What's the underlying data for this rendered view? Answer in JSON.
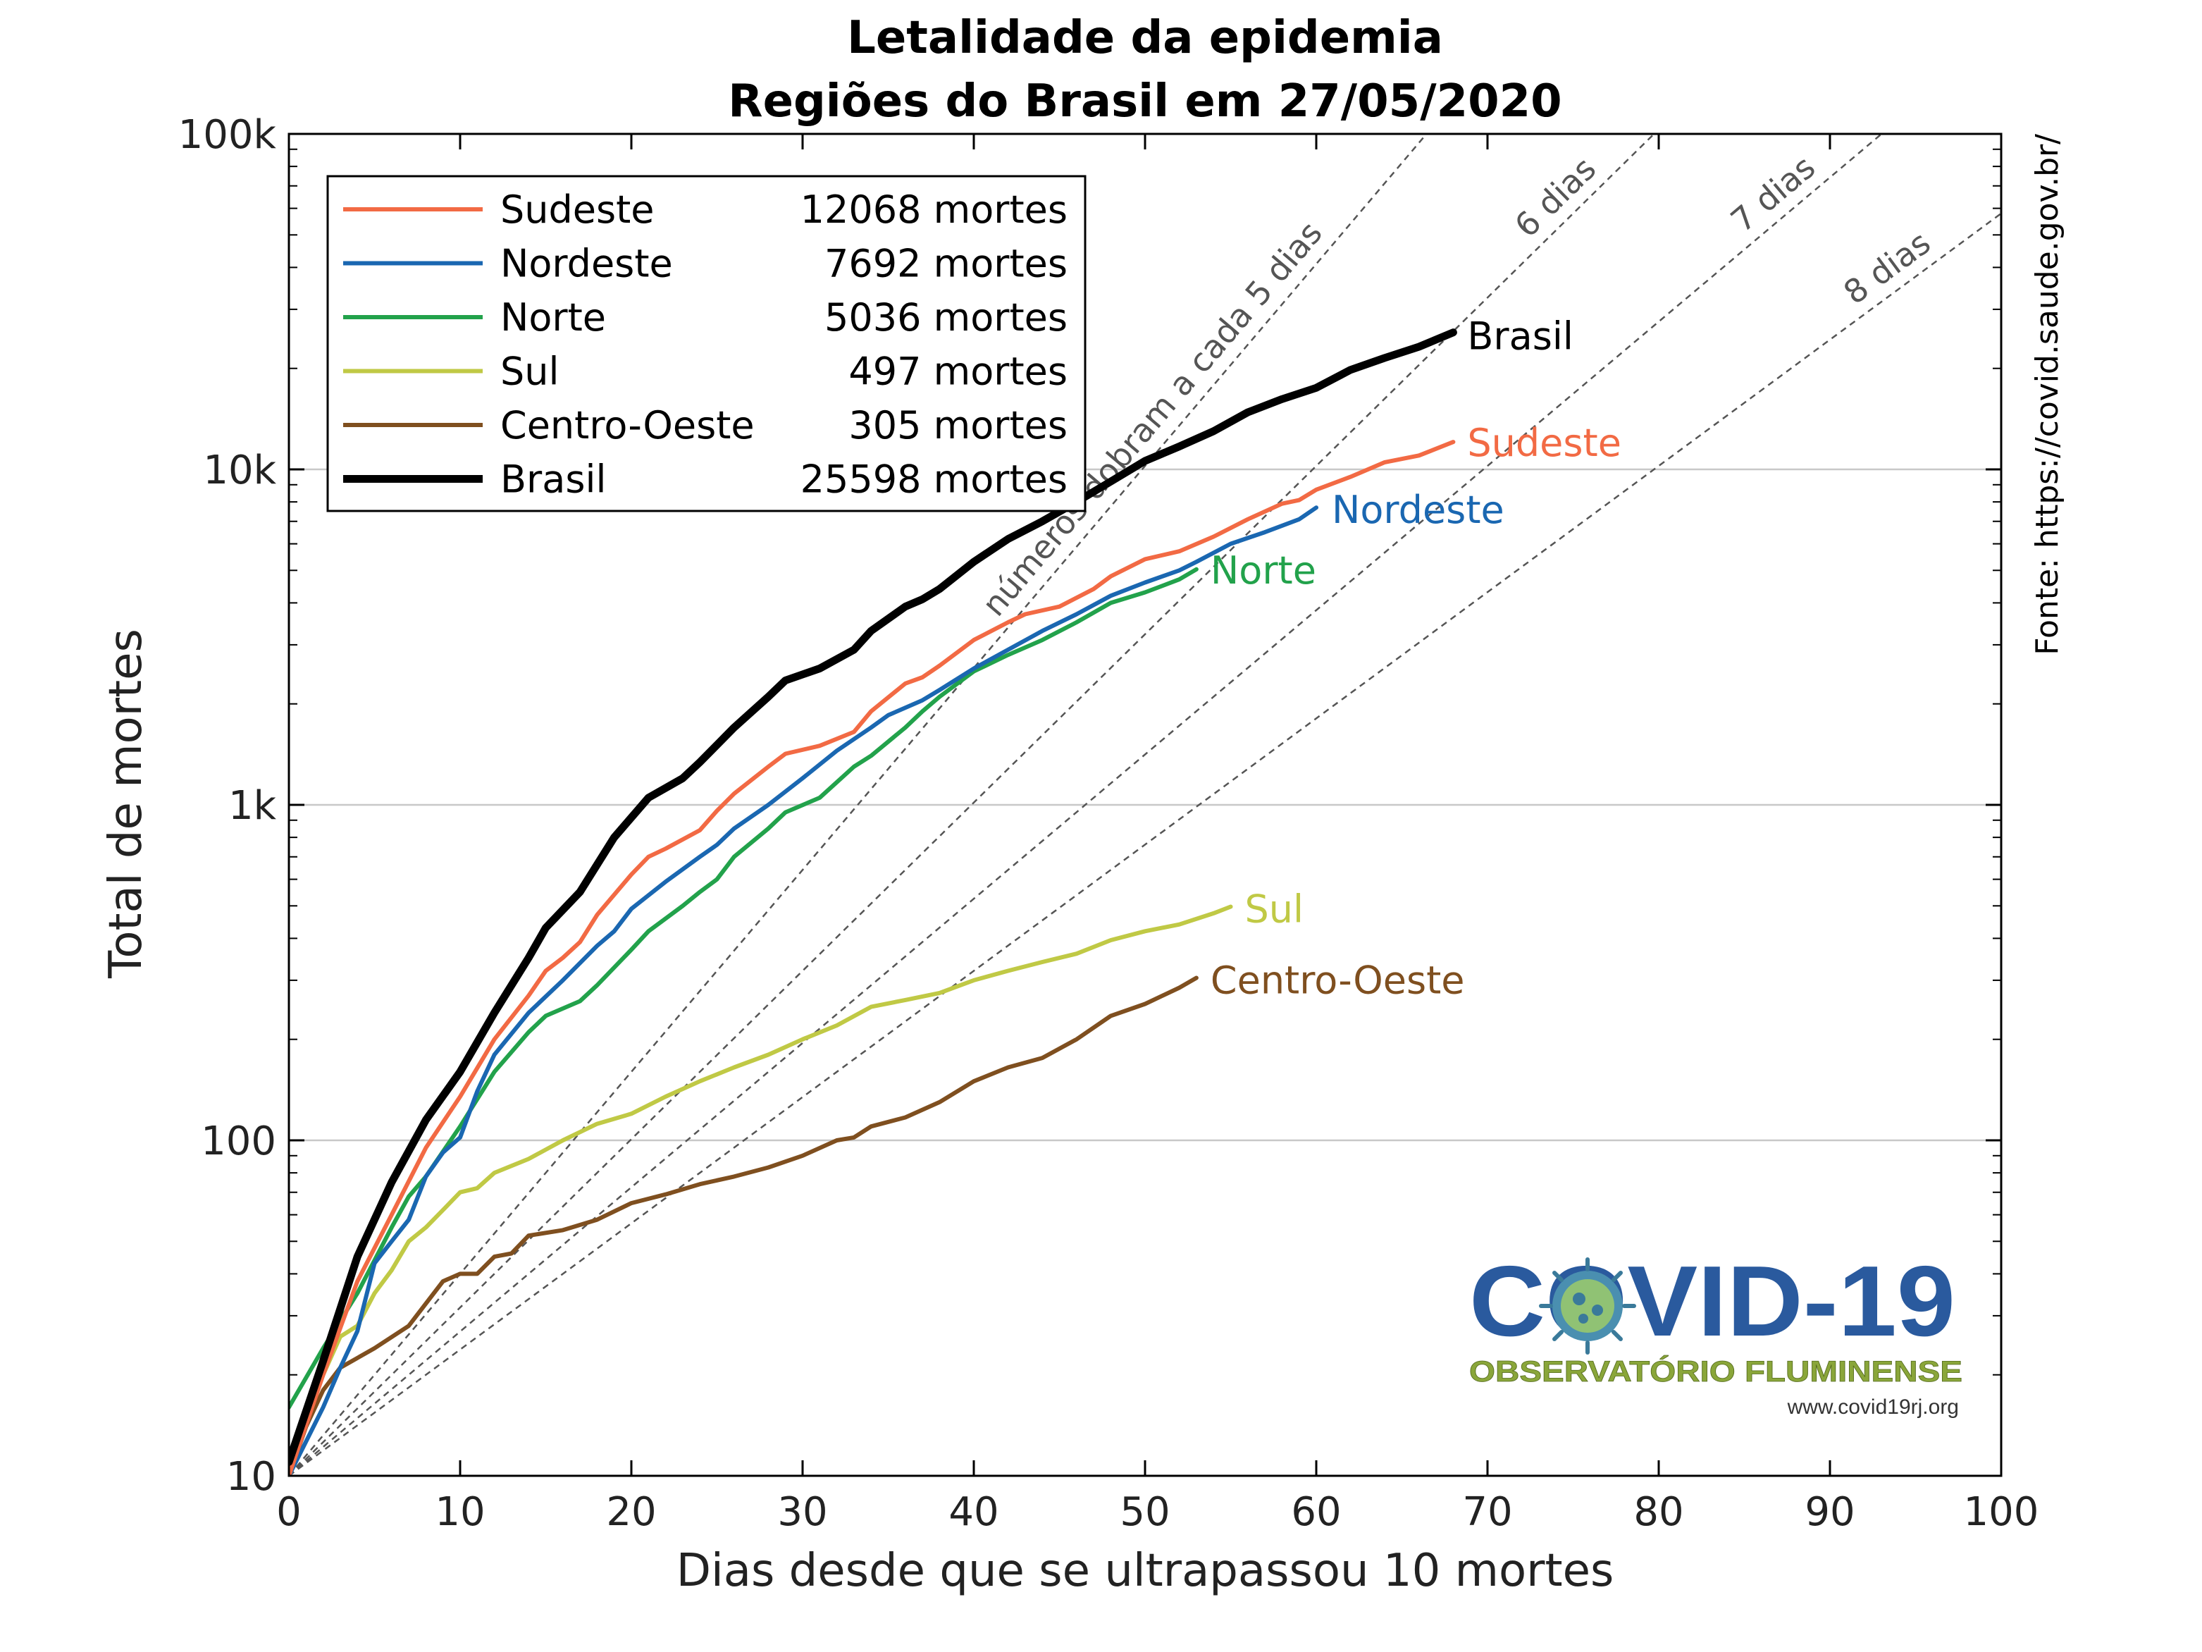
{
  "chart_data": {
    "type": "line",
    "title_line1": "Letalidade da epidemia",
    "title_line2": "Regiões do Brasil em 27/05/2020",
    "xlabel": "Dias desde que se ultrapassou 10 mortes",
    "ylabel": "Total de mortes",
    "xlim": [
      0,
      100
    ],
    "ylim": [
      10,
      100000
    ],
    "yscale": "log",
    "grid": "horizontal at decades",
    "legend_position": "top-left",
    "x_ticks": [
      {
        "v": 0,
        "label": "0"
      },
      {
        "v": 10,
        "label": "10"
      },
      {
        "v": 20,
        "label": "20"
      },
      {
        "v": 30,
        "label": "30"
      },
      {
        "v": 40,
        "label": "40"
      },
      {
        "v": 50,
        "label": "50"
      },
      {
        "v": 60,
        "label": "60"
      },
      {
        "v": 70,
        "label": "70"
      },
      {
        "v": 80,
        "label": "80"
      },
      {
        "v": 90,
        "label": "90"
      },
      {
        "v": 100,
        "label": "100"
      }
    ],
    "y_ticks": [
      {
        "v": 10,
        "label": "10"
      },
      {
        "v": 100,
        "label": "100"
      },
      {
        "v": 1000,
        "label": "1k"
      },
      {
        "v": 10000,
        "label": "10k"
      },
      {
        "v": 100000,
        "label": "100k"
      }
    ],
    "source": "Fonte: https://covid.saude.gov.br/",
    "reference_lines": [
      {
        "doubling_days": 5,
        "label": "números dobram a cada 5 dias"
      },
      {
        "doubling_days": 6,
        "label": "6 dias"
      },
      {
        "doubling_days": 7,
        "label": "7 dias"
      },
      {
        "doubling_days": 8,
        "label": "8 dias"
      }
    ],
    "series": [
      {
        "name": "Sudeste",
        "legend_value": "12068 mortes",
        "color": "#f26a44",
        "width": 3,
        "points": [
          [
            0,
            10
          ],
          [
            2,
            20
          ],
          [
            4,
            38
          ],
          [
            6,
            60
          ],
          [
            8,
            95
          ],
          [
            10,
            135
          ],
          [
            12,
            200
          ],
          [
            14,
            270
          ],
          [
            15,
            320
          ],
          [
            16,
            350
          ],
          [
            17,
            390
          ],
          [
            18,
            470
          ],
          [
            20,
            620
          ],
          [
            21,
            700
          ],
          [
            22,
            740
          ],
          [
            24,
            840
          ],
          [
            25,
            960
          ],
          [
            26,
            1080
          ],
          [
            28,
            1300
          ],
          [
            29,
            1420
          ],
          [
            31,
            1500
          ],
          [
            33,
            1650
          ],
          [
            34,
            1900
          ],
          [
            36,
            2300
          ],
          [
            37,
            2400
          ],
          [
            38,
            2600
          ],
          [
            40,
            3100
          ],
          [
            42,
            3500
          ],
          [
            43,
            3700
          ],
          [
            45,
            3900
          ],
          [
            47,
            4400
          ],
          [
            48,
            4800
          ],
          [
            50,
            5400
          ],
          [
            52,
            5700
          ],
          [
            54,
            6300
          ],
          [
            56,
            7100
          ],
          [
            58,
            7900
          ],
          [
            59,
            8100
          ],
          [
            60,
            8700
          ],
          [
            62,
            9500
          ],
          [
            64,
            10500
          ],
          [
            66,
            11000
          ],
          [
            68,
            12068
          ]
        ]
      },
      {
        "name": "Nordeste",
        "legend_value": "7692 mortes",
        "color": "#1a67b1",
        "width": 3,
        "points": [
          [
            0,
            10
          ],
          [
            2,
            16
          ],
          [
            3,
            21
          ],
          [
            4,
            27
          ],
          [
            5,
            43
          ],
          [
            6,
            50
          ],
          [
            7,
            58
          ],
          [
            8,
            78
          ],
          [
            9,
            92
          ],
          [
            10,
            102
          ],
          [
            11,
            140
          ],
          [
            12,
            180
          ],
          [
            14,
            240
          ],
          [
            16,
            300
          ],
          [
            18,
            380
          ],
          [
            19,
            420
          ],
          [
            20,
            490
          ],
          [
            22,
            590
          ],
          [
            24,
            700
          ],
          [
            25,
            760
          ],
          [
            26,
            850
          ],
          [
            28,
            1000
          ],
          [
            30,
            1200
          ],
          [
            32,
            1450
          ],
          [
            34,
            1700
          ],
          [
            35,
            1850
          ],
          [
            37,
            2050
          ],
          [
            38,
            2200
          ],
          [
            40,
            2550
          ],
          [
            42,
            2900
          ],
          [
            44,
            3300
          ],
          [
            46,
            3700
          ],
          [
            48,
            4200
          ],
          [
            50,
            4600
          ],
          [
            52,
            5000
          ],
          [
            53,
            5300
          ],
          [
            55,
            6000
          ],
          [
            57,
            6500
          ],
          [
            59,
            7100
          ],
          [
            60,
            7692
          ]
        ]
      },
      {
        "name": "Norte",
        "legend_value": "5036 mortes",
        "color": "#22a24b",
        "width": 3,
        "points": [
          [
            0,
            16
          ],
          [
            2,
            24
          ],
          [
            4,
            35
          ],
          [
            6,
            55
          ],
          [
            7,
            68
          ],
          [
            8,
            78
          ],
          [
            10,
            110
          ],
          [
            12,
            160
          ],
          [
            14,
            210
          ],
          [
            15,
            235
          ],
          [
            17,
            260
          ],
          [
            18,
            290
          ],
          [
            20,
            370
          ],
          [
            21,
            420
          ],
          [
            23,
            500
          ],
          [
            24,
            550
          ],
          [
            25,
            600
          ],
          [
            26,
            700
          ],
          [
            28,
            850
          ],
          [
            29,
            950
          ],
          [
            31,
            1050
          ],
          [
            33,
            1300
          ],
          [
            34,
            1400
          ],
          [
            36,
            1700
          ],
          [
            37,
            1900
          ],
          [
            38,
            2100
          ],
          [
            40,
            2500
          ],
          [
            42,
            2800
          ],
          [
            44,
            3100
          ],
          [
            46,
            3500
          ],
          [
            48,
            4000
          ],
          [
            50,
            4300
          ],
          [
            52,
            4700
          ],
          [
            53,
            5036
          ]
        ]
      },
      {
        "name": "Sul",
        "legend_value": "497 mortes",
        "color": "#c0c945",
        "width": 3,
        "points": [
          [
            0,
            10
          ],
          [
            1,
            15
          ],
          [
            2,
            20
          ],
          [
            3,
            26
          ],
          [
            4,
            28
          ],
          [
            5,
            35
          ],
          [
            6,
            41
          ],
          [
            7,
            50
          ],
          [
            8,
            55
          ],
          [
            9,
            62
          ],
          [
            10,
            70
          ],
          [
            11,
            72
          ],
          [
            12,
            80
          ],
          [
            14,
            88
          ],
          [
            16,
            100
          ],
          [
            18,
            112
          ],
          [
            20,
            120
          ],
          [
            22,
            135
          ],
          [
            24,
            150
          ],
          [
            26,
            165
          ],
          [
            28,
            180
          ],
          [
            30,
            200
          ],
          [
            32,
            220
          ],
          [
            34,
            250
          ],
          [
            36,
            262
          ],
          [
            38,
            275
          ],
          [
            40,
            300
          ],
          [
            42,
            320
          ],
          [
            44,
            340
          ],
          [
            46,
            360
          ],
          [
            48,
            395
          ],
          [
            50,
            420
          ],
          [
            52,
            440
          ],
          [
            54,
            475
          ],
          [
            55,
            497
          ]
        ]
      },
      {
        "name": "Centro-Oeste",
        "legend_value": "305 mortes",
        "color": "#7f4f1f",
        "width": 3,
        "points": [
          [
            0,
            10
          ],
          [
            1,
            14
          ],
          [
            2,
            18
          ],
          [
            3,
            21
          ],
          [
            5,
            24
          ],
          [
            7,
            28
          ],
          [
            9,
            38
          ],
          [
            10,
            40
          ],
          [
            11,
            40
          ],
          [
            12,
            45
          ],
          [
            13,
            46
          ],
          [
            14,
            52
          ],
          [
            16,
            54
          ],
          [
            18,
            58
          ],
          [
            20,
            65
          ],
          [
            22,
            69
          ],
          [
            24,
            74
          ],
          [
            26,
            78
          ],
          [
            28,
            83
          ],
          [
            30,
            90
          ],
          [
            32,
            100
          ],
          [
            33,
            102
          ],
          [
            34,
            110
          ],
          [
            36,
            117
          ],
          [
            38,
            130
          ],
          [
            40,
            150
          ],
          [
            42,
            165
          ],
          [
            44,
            176
          ],
          [
            46,
            200
          ],
          [
            48,
            235
          ],
          [
            50,
            255
          ],
          [
            52,
            285
          ],
          [
            53,
            305
          ]
        ]
      },
      {
        "name": "Brasil",
        "legend_value": "25598 mortes",
        "color": "#000000",
        "width": 5.5,
        "points": [
          [
            0,
            11
          ],
          [
            2,
            22
          ],
          [
            4,
            45
          ],
          [
            6,
            75
          ],
          [
            8,
            115
          ],
          [
            10,
            160
          ],
          [
            12,
            240
          ],
          [
            14,
            350
          ],
          [
            15,
            430
          ],
          [
            17,
            550
          ],
          [
            19,
            800
          ],
          [
            21,
            1050
          ],
          [
            23,
            1200
          ],
          [
            24,
            1340
          ],
          [
            26,
            1700
          ],
          [
            28,
            2100
          ],
          [
            29,
            2350
          ],
          [
            31,
            2550
          ],
          [
            33,
            2900
          ],
          [
            34,
            3300
          ],
          [
            36,
            3900
          ],
          [
            37,
            4100
          ],
          [
            38,
            4400
          ],
          [
            40,
            5300
          ],
          [
            42,
            6200
          ],
          [
            44,
            7000
          ],
          [
            46,
            8000
          ],
          [
            48,
            9200
          ],
          [
            50,
            10600
          ],
          [
            52,
            11700
          ],
          [
            54,
            13000
          ],
          [
            56,
            14800
          ],
          [
            58,
            16200
          ],
          [
            60,
            17500
          ],
          [
            62,
            19800
          ],
          [
            64,
            21500
          ],
          [
            66,
            23200
          ],
          [
            68,
            25598
          ]
        ]
      }
    ]
  },
  "logo": {
    "text": "COVID-19",
    "subtitle": "OBSERVATÓRIO FLUMINENSE",
    "url": "www.covid19rj.org"
  }
}
